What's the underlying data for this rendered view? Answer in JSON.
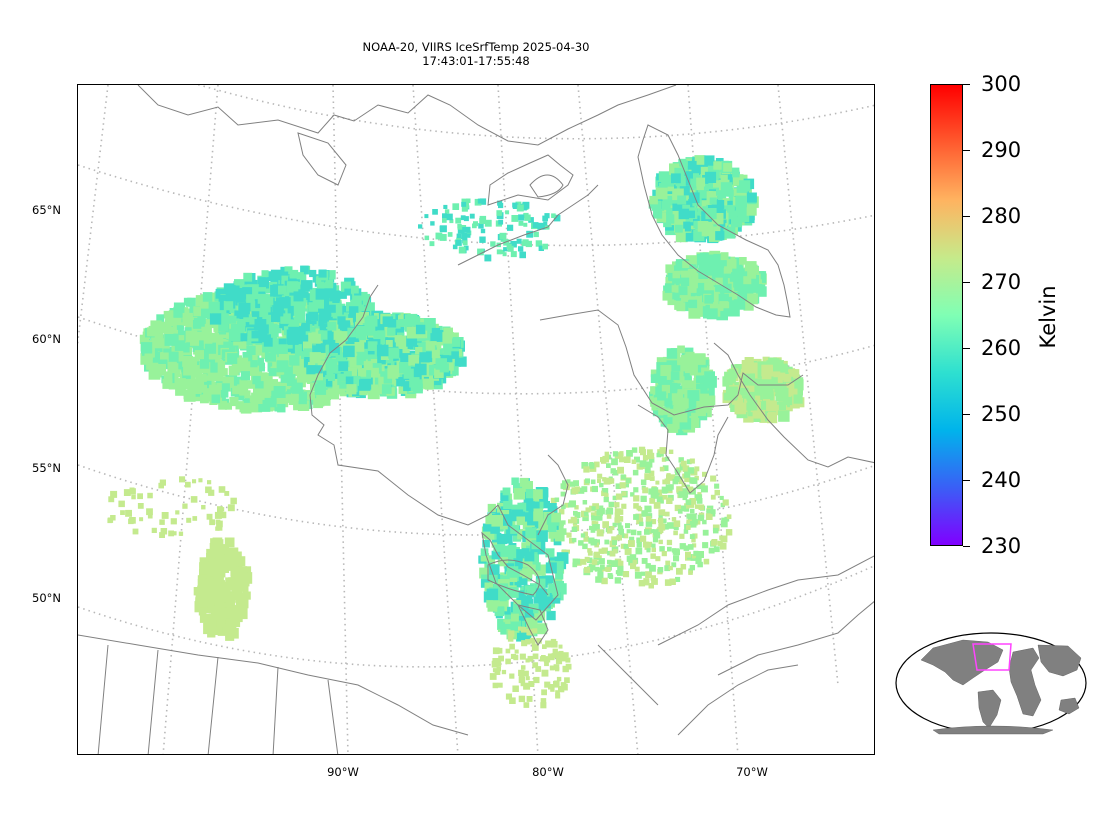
{
  "title": {
    "line1": "NOAA-20, VIIRS IceSrfTemp 2025-04-30",
    "line2": "17:43:01-17:55:48"
  },
  "map": {
    "lat_labels": [
      "65°N",
      "60°N",
      "55°N",
      "50°N"
    ],
    "lon_labels": [
      "90°W",
      "80°W",
      "70°W"
    ],
    "coastline_color": "#808080",
    "gridline_color": "#b0b0b0"
  },
  "colorbar": {
    "label": "Kelvin",
    "min": 230,
    "max": 300,
    "ticks": [
      "300",
      "290",
      "280",
      "270",
      "260",
      "250",
      "240",
      "230"
    ],
    "colormap": "rainbow",
    "colormap_stops": [
      "#8000ff",
      "#3a5ff6",
      "#00b4eb",
      "#2ee0d0",
      "#80ffb4",
      "#c6ea8a",
      "#ffb360",
      "#ff5a2e",
      "#ff0000"
    ]
  },
  "inset": {
    "land_color": "#808080",
    "highlight_color": "#ff44ff"
  },
  "swath_colors": {
    "cold_cyan": "#40dcc8",
    "teal_green": "#6ef0b0",
    "light_green": "#98f29a",
    "yellow_green": "#c4ea8e"
  }
}
